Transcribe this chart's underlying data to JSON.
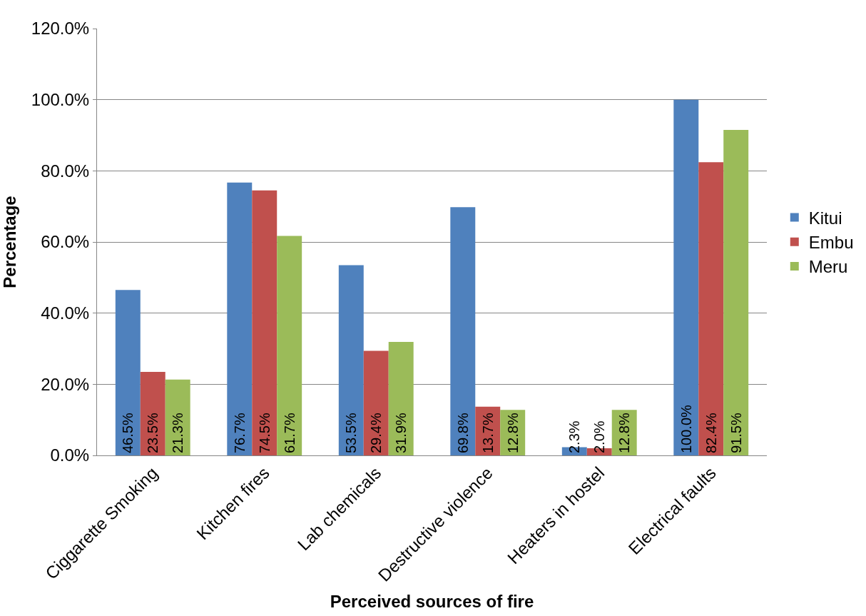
{
  "chart_data": {
    "type": "bar",
    "xlabel": "Perceived sources of fire",
    "ylabel": "Percentage",
    "categories": [
      "Ciggarette Smoking",
      "Kitchen fires",
      "Lab chemicals",
      "Destructive violence",
      "Heaters in hostel",
      "Electrical faults"
    ],
    "series": [
      {
        "name": "Kitui",
        "color": "#4f81bd",
        "values": [
          46.5,
          76.7,
          53.5,
          69.8,
          2.3,
          100.0
        ],
        "value_labels": [
          "46.5%",
          "76.7%",
          "53.5%",
          "69.8%",
          "2.3%",
          "100.0%"
        ]
      },
      {
        "name": "Embu",
        "color": "#c0504d",
        "values": [
          23.5,
          74.5,
          29.4,
          13.7,
          2.0,
          82.4
        ],
        "value_labels": [
          "23.5%",
          "74.5%",
          "29.4%",
          "13.7%",
          "2.0%",
          "82.4%"
        ]
      },
      {
        "name": "Meru",
        "color": "#9bbb59",
        "values": [
          21.3,
          61.7,
          31.9,
          12.8,
          12.8,
          91.5
        ],
        "value_labels": [
          "21.3%",
          "61.7%",
          "31.9%",
          "12.8%",
          "12.8%",
          "91.5%"
        ]
      }
    ],
    "ylim": [
      0,
      120
    ],
    "yticks": [
      {
        "value": 0,
        "label": "0.0%"
      },
      {
        "value": 20,
        "label": "20.0%"
      },
      {
        "value": 40,
        "label": "40.0%"
      },
      {
        "value": 60,
        "label": "60.0%"
      },
      {
        "value": 80,
        "label": "80.0%"
      },
      {
        "value": 100,
        "label": "100.0%"
      },
      {
        "value": 120,
        "label": "120.0%"
      }
    ],
    "grid": "y",
    "legend": "right"
  }
}
